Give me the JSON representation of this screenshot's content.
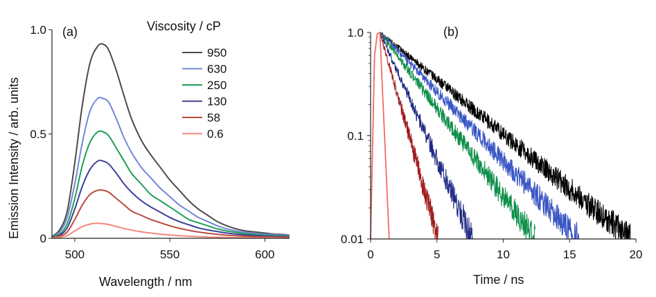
{
  "chart_data": [
    {
      "type": "line",
      "panel_label": "(a)",
      "xlabel": "Wavelength / nm",
      "ylabel": "Emission Intensity / arb. units",
      "xlim": [
        488,
        613
      ],
      "ylim": [
        0,
        1.0
      ],
      "xticks": [
        500,
        550,
        600
      ],
      "yticks": [
        0,
        0.5,
        1.0
      ],
      "xtick_labels": [
        "500",
        "550",
        "600"
      ],
      "ytick_labels": [
        "0",
        "0.5",
        "1.0"
      ],
      "grid": false,
      "legend_title": "Viscosity / cP",
      "legend_position": "top-right",
      "x": [
        488,
        492,
        496,
        500,
        504,
        508,
        512,
        515,
        518,
        522,
        526,
        530,
        535,
        540,
        545,
        550,
        555,
        560,
        565,
        570,
        575,
        580,
        585,
        590,
        595,
        600,
        605,
        610,
        613
      ],
      "series": [
        {
          "name": "950",
          "color": "#4a4a4a",
          "values": [
            0.01,
            0.04,
            0.13,
            0.36,
            0.64,
            0.84,
            0.92,
            0.93,
            0.9,
            0.8,
            0.68,
            0.57,
            0.47,
            0.4,
            0.34,
            0.28,
            0.23,
            0.18,
            0.14,
            0.11,
            0.08,
            0.06,
            0.045,
            0.035,
            0.03,
            0.025,
            0.02,
            0.018,
            0.015
          ]
        },
        {
          "name": "630",
          "color": "#7187d8",
          "values": [
            0.01,
            0.03,
            0.1,
            0.26,
            0.46,
            0.61,
            0.67,
            0.67,
            0.65,
            0.57,
            0.48,
            0.41,
            0.34,
            0.29,
            0.24,
            0.2,
            0.16,
            0.13,
            0.1,
            0.08,
            0.06,
            0.045,
            0.035,
            0.028,
            0.023,
            0.02,
            0.017,
            0.015,
            0.013
          ]
        },
        {
          "name": "250",
          "color": "#1f9e57",
          "values": [
            0.01,
            0.02,
            0.07,
            0.19,
            0.35,
            0.46,
            0.51,
            0.51,
            0.49,
            0.43,
            0.37,
            0.31,
            0.26,
            0.21,
            0.18,
            0.15,
            0.12,
            0.09,
            0.075,
            0.06,
            0.045,
            0.035,
            0.028,
            0.022,
            0.018,
            0.015,
            0.013,
            0.011,
            0.01
          ]
        },
        {
          "name": "130",
          "color": "#3c3f9a",
          "values": [
            0.005,
            0.015,
            0.05,
            0.14,
            0.25,
            0.33,
            0.37,
            0.37,
            0.355,
            0.31,
            0.26,
            0.22,
            0.18,
            0.15,
            0.125,
            0.1,
            0.08,
            0.065,
            0.05,
            0.04,
            0.032,
            0.025,
            0.02,
            0.016,
            0.013,
            0.011,
            0.009,
            0.008,
            0.007
          ]
        },
        {
          "name": "58",
          "color": "#b84a3c",
          "values": [
            0.003,
            0.01,
            0.03,
            0.09,
            0.16,
            0.21,
            0.23,
            0.23,
            0.22,
            0.19,
            0.16,
            0.13,
            0.11,
            0.09,
            0.075,
            0.06,
            0.048,
            0.038,
            0.03,
            0.024,
            0.019,
            0.015,
            0.012,
            0.01,
            0.008,
            0.007,
            0.006,
            0.005,
            0.005
          ]
        },
        {
          "name": "0.6",
          "color": "#f2867a",
          "values": [
            0.002,
            0.005,
            0.013,
            0.035,
            0.056,
            0.068,
            0.072,
            0.07,
            0.066,
            0.056,
            0.047,
            0.039,
            0.031,
            0.025,
            0.02,
            0.016,
            0.013,
            0.01,
            0.008,
            0.006,
            0.005,
            0.004,
            0.003,
            0.003,
            0.002,
            0.002,
            0.002,
            0.001,
            0.001
          ]
        }
      ]
    },
    {
      "type": "line",
      "panel_label": "(b)",
      "xlabel": "Time / ns",
      "ylabel": "",
      "xlim": [
        0,
        20
      ],
      "ylim": [
        0.01,
        1.0
      ],
      "yscale": "log",
      "xticks": [
        0,
        5,
        10,
        15,
        20
      ],
      "yticks": [
        0.01,
        0.1,
        1.0
      ],
      "xtick_labels": [
        "0",
        "5",
        "10",
        "15",
        "20"
      ],
      "ytick_labels": [
        "0.01",
        "0.1",
        "1.0"
      ],
      "grid": false,
      "series": [
        {
          "name": "950",
          "color": "#000000",
          "x": [
            0.0,
            0.3,
            0.5,
            0.7,
            19.6
          ],
          "values": [
            0.01,
            0.6,
            0.97,
            1.0,
            0.01
          ],
          "noisy": true
        },
        {
          "name": "630",
          "color": "#3a56c4",
          "x": [
            0.0,
            0.3,
            0.5,
            0.7,
            15.7
          ],
          "values": [
            0.01,
            0.6,
            0.97,
            1.0,
            0.01
          ],
          "noisy": true
        },
        {
          "name": "250",
          "color": "#0e8f4a",
          "x": [
            0.0,
            0.3,
            0.5,
            0.7,
            12.4
          ],
          "values": [
            0.01,
            0.6,
            0.97,
            1.0,
            0.01
          ],
          "noisy": true
        },
        {
          "name": "130",
          "color": "#1f2a85",
          "x": [
            0.0,
            0.3,
            0.5,
            0.7,
            7.7
          ],
          "values": [
            0.01,
            0.6,
            0.97,
            1.0,
            0.01
          ],
          "noisy": true
        },
        {
          "name": "58",
          "color": "#a01c1c",
          "x": [
            0.0,
            0.3,
            0.5,
            0.7,
            5.1
          ],
          "values": [
            0.01,
            0.6,
            0.97,
            1.0,
            0.01
          ],
          "noisy": true
        },
        {
          "name": "0.6",
          "color": "#f06a64",
          "x": [
            0.0,
            0.3,
            0.5,
            0.7,
            1.4
          ],
          "values": [
            0.01,
            0.6,
            0.97,
            1.0,
            0.01
          ],
          "noisy": false
        }
      ]
    }
  ]
}
